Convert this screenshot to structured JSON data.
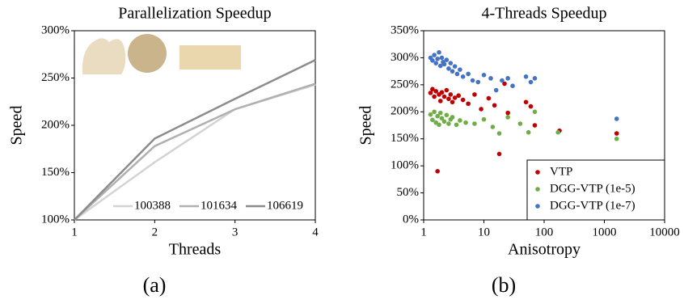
{
  "chart_data": [
    {
      "type": "line",
      "title": "Parallelization Speedup",
      "x_label": "Threads",
      "y_label": "Speed",
      "caption": "(a)",
      "x": [
        1,
        2,
        3,
        4
      ],
      "series": [
        {
          "name": "100388",
          "color": "#d3d3d3",
          "values": [
            100,
            161,
            217,
            243
          ]
        },
        {
          "name": "101634",
          "color": "#b0b0b0",
          "values": [
            100,
            178,
            217,
            244
          ]
        },
        {
          "name": "106619",
          "color": "#8c8c8c",
          "values": [
            100,
            186,
            228,
            269
          ]
        }
      ],
      "xlim": [
        1,
        4
      ],
      "xticks": [
        1,
        2,
        3,
        4
      ],
      "ylim": [
        100,
        300
      ],
      "yticks": [
        {
          "value": 100,
          "label": "100%"
        },
        {
          "value": 150,
          "label": "150%"
        },
        {
          "value": 200,
          "label": "200%"
        },
        {
          "value": 250,
          "label": "250%"
        },
        {
          "value": 300,
          "label": "300%"
        }
      ],
      "legend": "bottom-right"
    },
    {
      "type": "scatter",
      "title": "4-Threads Speedup",
      "x_label": "Anisotropy",
      "y_label": "Speed",
      "caption": "(b)",
      "log_x": true,
      "series": [
        {
          "name": "VTP",
          "color": "#c00000",
          "x": [
            1.3,
            1.4,
            1.5,
            1.6,
            1.7,
            1.8,
            1.9,
            2.0,
            2.2,
            2.4,
            2.6,
            2.8,
            3.0,
            3.3,
            3.8,
            4.5,
            5.5,
            7,
            9,
            12,
            15,
            18,
            22,
            25,
            50,
            60,
            70,
            180,
            1600
          ],
          "values": [
            235,
            242,
            228,
            238,
            90,
            232,
            220,
            236,
            228,
            240,
            224,
            232,
            218,
            226,
            230,
            222,
            215,
            232,
            205,
            225,
            212,
            122,
            252,
            198,
            218,
            210,
            175,
            165,
            160
          ]
        },
        {
          "name": "DGG-VTP (1e-5)",
          "color": "#70ad47",
          "x": [
            1.3,
            1.4,
            1.5,
            1.6,
            1.7,
            1.8,
            1.9,
            2.0,
            2.2,
            2.4,
            2.6,
            2.8,
            3.0,
            3.5,
            4.0,
            5,
            7,
            10,
            14,
            18,
            25,
            40,
            55,
            70,
            170,
            1600
          ],
          "values": [
            195,
            185,
            200,
            180,
            192,
            176,
            198,
            188,
            182,
            194,
            178,
            186,
            190,
            176,
            184,
            180,
            178,
            186,
            172,
            160,
            190,
            178,
            162,
            200,
            162,
            150
          ]
        },
        {
          "name": "DGG-VTP (1e-7)",
          "color": "#4472c4",
          "x": [
            1.3,
            1.4,
            1.5,
            1.6,
            1.7,
            1.8,
            1.9,
            2.0,
            2.1,
            2.2,
            2.4,
            2.6,
            2.8,
            3.0,
            3.3,
            3.6,
            4.0,
            4.5,
            5.5,
            6.5,
            8,
            10,
            13,
            16,
            20,
            25,
            30,
            50,
            60,
            70,
            1600
          ],
          "values": [
            300,
            295,
            305,
            290,
            298,
            310,
            285,
            300,
            292,
            288,
            296,
            280,
            290,
            275,
            284,
            270,
            278,
            265,
            270,
            258,
            255,
            268,
            262,
            240,
            258,
            262,
            248,
            265,
            255,
            262,
            187
          ]
        }
      ],
      "xlim": [
        1,
        10000
      ],
      "xticks": [
        1,
        10,
        100,
        1000,
        10000
      ],
      "ylim": [
        0,
        350
      ],
      "yticks": [
        {
          "value": 0,
          "label": "0%"
        },
        {
          "value": 50,
          "label": "50%"
        },
        {
          "value": 100,
          "label": "100%"
        },
        {
          "value": 150,
          "label": "150%"
        },
        {
          "value": 200,
          "label": "200%"
        },
        {
          "value": 250,
          "label": "250%"
        },
        {
          "value": 300,
          "label": "300%"
        },
        {
          "value": 350,
          "label": "350%"
        }
      ],
      "legend": "bottom-right"
    }
  ]
}
